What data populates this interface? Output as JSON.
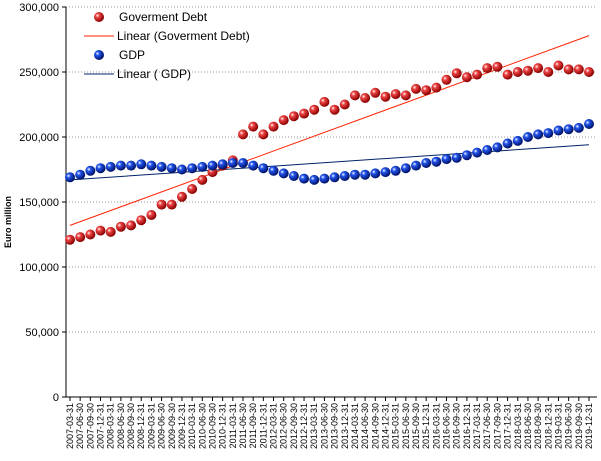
{
  "chart_data": {
    "type": "scatter",
    "title": "",
    "xlabel": "",
    "ylabel": "Euro million",
    "ylim": [
      0,
      300000
    ],
    "yticks": [
      "0",
      "50,000",
      "100,000",
      "150,000",
      "200,000",
      "250,000",
      "300,000"
    ],
    "grid": "horizontal dotted",
    "legend_position": "top-left",
    "x": [
      "2007-03-31",
      "2007-06-30",
      "2007-09-30",
      "2007-12-31",
      "2008-03-31",
      "2008-06-30",
      "2008-09-30",
      "2008-12-31",
      "2009-03-31",
      "2009-06-30",
      "2009-09-30",
      "2009-12-31",
      "2010-03-31",
      "2010-06-30",
      "2010-09-30",
      "2010-12-31",
      "2011-03-31",
      "2011-06-30",
      "2011-09-30",
      "2011-12-31",
      "2012-03-31",
      "2012-06-30",
      "2012-09-30",
      "2012-12-31",
      "2013-03-31",
      "2013-06-30",
      "2013-09-30",
      "2013-12-31",
      "2014-03-31",
      "2014-06-30",
      "2014-09-30",
      "2014-12-31",
      "2015-03-31",
      "2015-06-30",
      "2015-09-30",
      "2015-12-31",
      "2016-03-31",
      "2016-06-30",
      "2016-09-30",
      "2016-12-31",
      "2017-03-31",
      "2017-06-30",
      "2017-09-30",
      "2017-12-31",
      "2018-03-31",
      "2018-06-30",
      "2018-09-30",
      "2018-12-31",
      "2019-03-31",
      "2019-06-30",
      "2019-09-30",
      "2019-12-31"
    ],
    "series": [
      {
        "name": "Goverment Debt",
        "color": "#cc1111",
        "marker": "sphere",
        "values": [
          121000,
          123000,
          125000,
          128000,
          127000,
          131000,
          132000,
          136000,
          140000,
          148000,
          148000,
          154000,
          160000,
          167000,
          173000,
          178000,
          182000,
          202000,
          208000,
          202000,
          208000,
          213000,
          216000,
          218000,
          221000,
          227000,
          221000,
          225000,
          232000,
          230000,
          234000,
          231000,
          233000,
          232000,
          237000,
          236000,
          238000,
          244000,
          249000,
          246000,
          248000,
          253000,
          254000,
          248000,
          250000,
          251000,
          253000,
          250000,
          255000,
          252000,
          252000,
          250000
        ]
      },
      {
        "name": "GDP",
        "color": "#1133cc",
        "marker": "sphere",
        "values": [
          169000,
          171000,
          174000,
          176000,
          177000,
          178000,
          178000,
          179000,
          178000,
          177000,
          176000,
          175000,
          176000,
          177000,
          178000,
          179000,
          180000,
          180000,
          178000,
          176000,
          174000,
          172000,
          170000,
          168000,
          167000,
          168000,
          169000,
          170000,
          171000,
          171000,
          172000,
          173000,
          174000,
          176000,
          178000,
          180000,
          181000,
          183000,
          184000,
          186000,
          188000,
          190000,
          192000,
          195000,
          197000,
          200000,
          202000,
          203000,
          205000,
          206000,
          207000,
          210000
        ]
      }
    ],
    "trendlines": [
      {
        "name": "Linear (Goverment Debt)",
        "color": "#ff2200",
        "start": 132000,
        "end": 278000
      },
      {
        "name": "Linear ( GDP)",
        "color": "#002266",
        "start": 167000,
        "end": 194000
      }
    ]
  }
}
